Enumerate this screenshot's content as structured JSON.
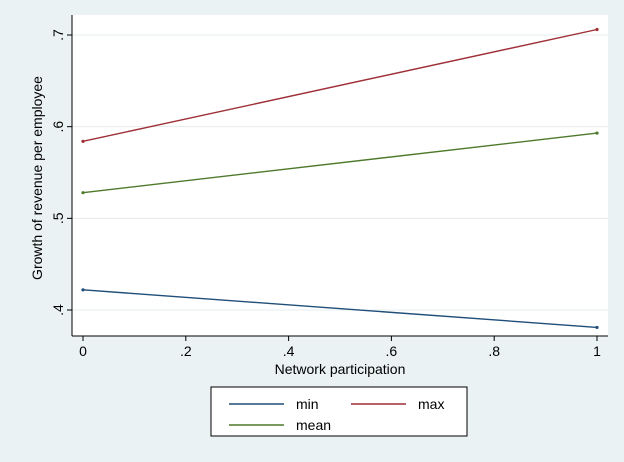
{
  "chart_data": {
    "type": "line",
    "title": "",
    "xlabel": "Network participation",
    "ylabel": "Growth of revenue per employee",
    "xlim": [
      0,
      1
    ],
    "ylim": [
      0.4,
      0.7
    ],
    "x_ticks": [
      0,
      0.2,
      0.4,
      0.6,
      0.8,
      1
    ],
    "x_tick_labels": [
      "0",
      ".2",
      ".4",
      ".6",
      ".8",
      "1"
    ],
    "y_ticks": [
      0.4,
      0.5,
      0.6,
      0.7
    ],
    "y_tick_labels": [
      ".4",
      ".5",
      ".6",
      ".7"
    ],
    "grid": true,
    "legend_position": "bottom",
    "series": [
      {
        "name": "min",
        "color": "#1f4e79",
        "x": [
          0,
          1
        ],
        "y": [
          0.422,
          0.381
        ]
      },
      {
        "name": "max",
        "color": "#9e2f36",
        "x": [
          0,
          1
        ],
        "y": [
          0.584,
          0.706
        ]
      },
      {
        "name": "mean",
        "color": "#4e7a2b",
        "x": [
          0,
          1
        ],
        "y": [
          0.528,
          0.593
        ]
      }
    ]
  }
}
